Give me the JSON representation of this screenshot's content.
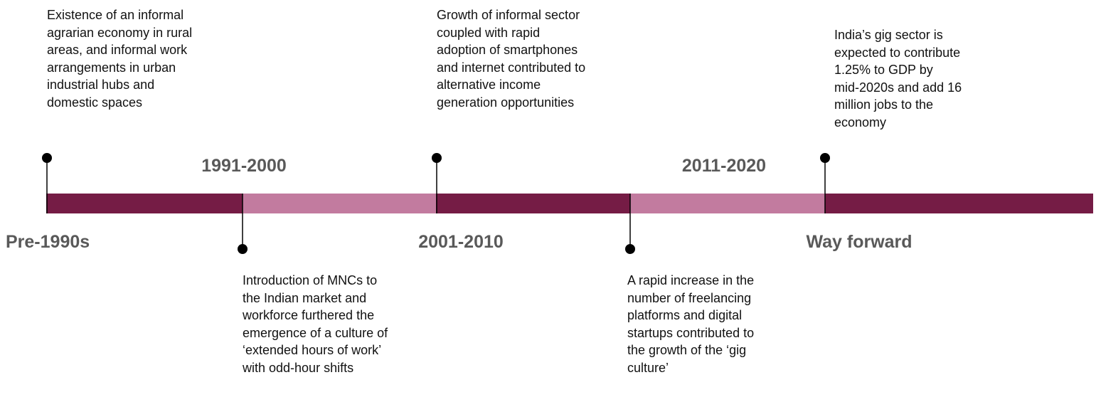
{
  "periods": [
    {
      "label": "Pre-1990s",
      "description": [
        "Existence of an informal",
        "agrarian economy in rural",
        "areas, and informal work",
        "arrangements in urban",
        "industrial hubs and",
        "domestic spaces"
      ]
    },
    {
      "label": "1991-2000",
      "description": [
        "Introduction of MNCs to",
        "the Indian market and",
        "workforce furthered the",
        "emergence of a culture of",
        "‘extended hours of work’",
        "with odd-hour shifts"
      ]
    },
    {
      "label": "2001-2010",
      "description": [
        "Growth of informal sector",
        "coupled with rapid",
        "adoption of smartphones",
        "and internet contributed to",
        "alternative income",
        "generation opportunities"
      ]
    },
    {
      "label": "2011-2020",
      "description": [
        "A rapid increase in the",
        "number of freelancing",
        "platforms and digital",
        "startups contributed to",
        "the growth of the ‘gig",
        "culture’"
      ]
    },
    {
      "label": "Way forward",
      "description": [
        "India’s gig sector is",
        "expected to contribute",
        "1.25% to GDP by",
        "mid-2020s and add 16",
        "million jobs to the",
        "economy"
      ]
    }
  ]
}
